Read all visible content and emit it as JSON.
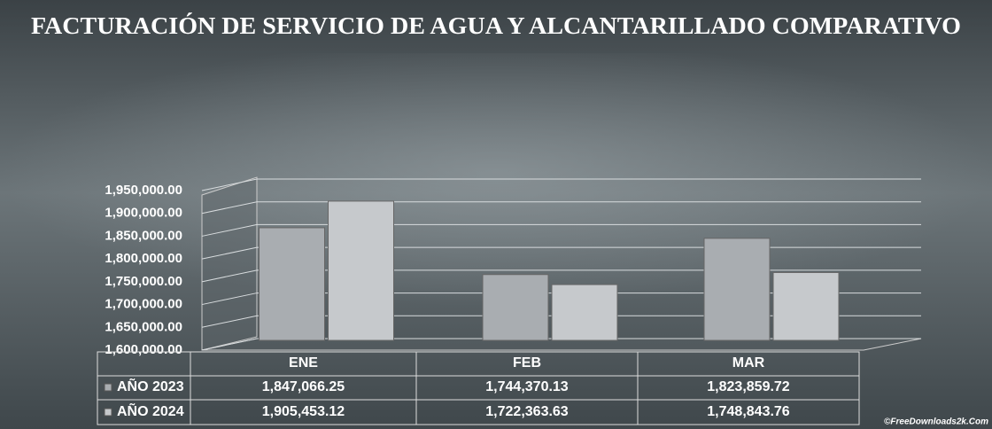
{
  "chart_data": {
    "type": "bar3d",
    "title": "FACTURACIÓN DE SERVICIO DE AGUA Y ALCANTARILLADO COMPARATIVO",
    "categories": [
      "ENE",
      "FEB",
      "MAR"
    ],
    "series": [
      {
        "name": "AÑO 2023",
        "color": "#a9adb1",
        "values": [
          1847066.25,
          1744370.13,
          1823859.72
        ],
        "value_labels": [
          "1,847,066.25",
          "1,744,370.13",
          "1,823,859.72"
        ]
      },
      {
        "name": "AÑO 2024",
        "color": "#c6c9cc",
        "values": [
          1905453.12,
          1722363.63,
          1748843.76
        ],
        "value_labels": [
          "1,905,453.12",
          "1,722,363.63",
          "1,748,843.76"
        ]
      }
    ],
    "ylim": [
      1600000,
      1950000
    ],
    "yticks": [
      {
        "value": 1600000,
        "label": "1,600,000.00"
      },
      {
        "value": 1650000,
        "label": "1,650,000.00"
      },
      {
        "value": 1700000,
        "label": "1,700,000.00"
      },
      {
        "value": 1750000,
        "label": "1,750,000.00"
      },
      {
        "value": 1800000,
        "label": "1,800,000.00"
      },
      {
        "value": 1850000,
        "label": "1,850,000.00"
      },
      {
        "value": 1900000,
        "label": "1,900,000.00"
      },
      {
        "value": 1950000,
        "label": "1,950,000.00"
      }
    ],
    "grid": true,
    "data_table": true,
    "watermark": "©FreeDownloads2k.Com"
  }
}
